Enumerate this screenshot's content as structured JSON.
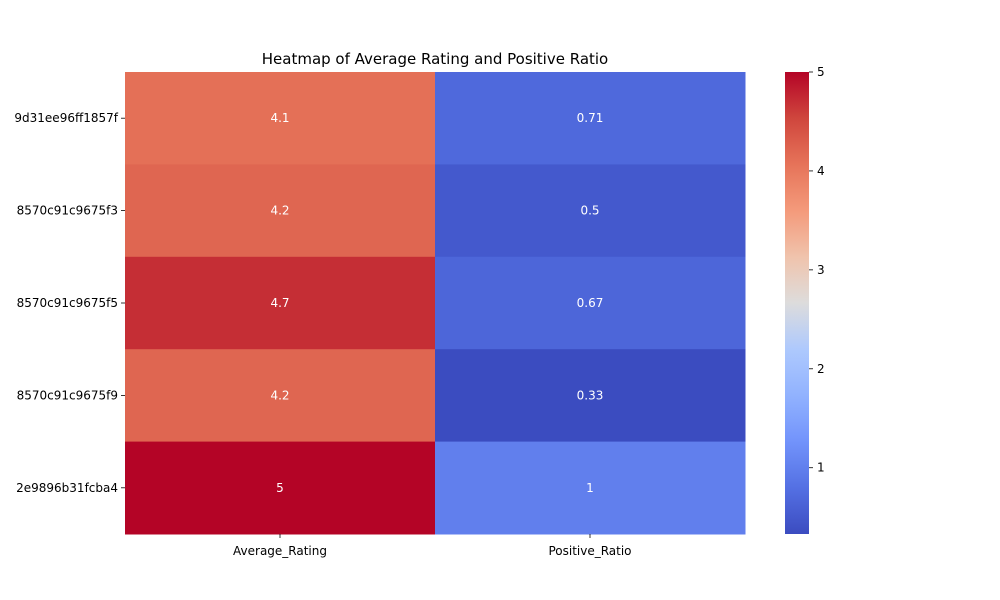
{
  "chart_data": {
    "type": "heatmap",
    "title": "Heatmap of Average Rating and Positive Ratio",
    "columns": [
      "Average_Rating",
      "Positive_Ratio"
    ],
    "rows": [
      "9d31ee96ff1857f",
      "8570c91c9675f3",
      "8570c91c9675f5",
      "8570c91c9675f9",
      "2e9896b31fcba4"
    ],
    "values": [
      [
        4.1,
        0.71
      ],
      [
        4.2,
        0.5
      ],
      [
        4.7,
        0.67
      ],
      [
        4.2,
        0.33
      ],
      [
        5,
        1
      ]
    ],
    "cell_labels": [
      [
        "4.1",
        "0.71"
      ],
      [
        "4.2",
        "0.5"
      ],
      [
        "4.7",
        "0.67"
      ],
      [
        "4.2",
        "0.33"
      ],
      [
        "5",
        "1"
      ]
    ],
    "colormap": "coolwarm",
    "vmin": 0.33,
    "vmax": 5,
    "colorbar_ticks": [
      "1",
      "2",
      "3",
      "4",
      "5"
    ],
    "colorbar_tick_values": [
      1,
      2,
      3,
      4,
      5
    ],
    "grid": false,
    "colorbar_position": "right"
  }
}
